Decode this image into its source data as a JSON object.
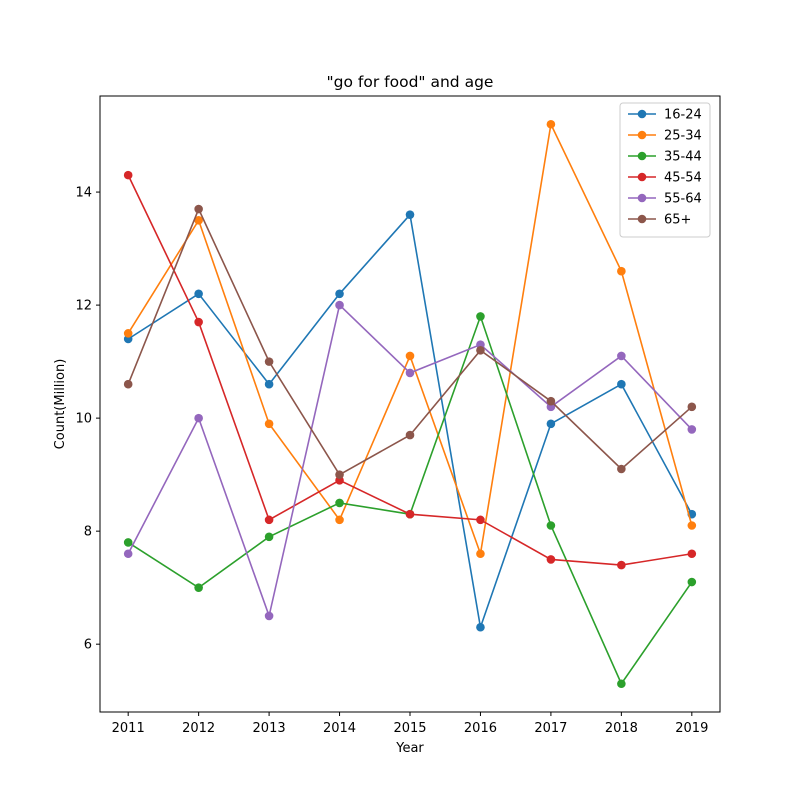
{
  "chart_data": {
    "type": "line",
    "title": "\"go for food\" and age",
    "xlabel": "Year",
    "ylabel": "Count(Million)",
    "x": [
      2011,
      2012,
      2013,
      2014,
      2015,
      2016,
      2017,
      2018,
      2019
    ],
    "xticks": [
      "2011",
      "2012",
      "2013",
      "2014",
      "2015",
      "2016",
      "2017",
      "2018",
      "2019"
    ],
    "yticks": [
      6,
      8,
      10,
      12,
      14
    ],
    "xlim": [
      2010.6,
      2019.4
    ],
    "ylim": [
      4.8,
      15.7
    ],
    "grid": false,
    "legend_position": "top-right",
    "series": [
      {
        "name": "16-24",
        "color": "#1f77b4",
        "values": [
          11.4,
          12.2,
          10.6,
          12.2,
          13.6,
          6.3,
          9.9,
          10.6,
          8.3
        ]
      },
      {
        "name": "25-34",
        "color": "#ff7f0e",
        "values": [
          11.5,
          13.5,
          9.9,
          8.2,
          11.1,
          7.6,
          15.2,
          12.6,
          8.1
        ]
      },
      {
        "name": "35-44",
        "color": "#2ca02c",
        "values": [
          7.8,
          7.0,
          7.9,
          8.5,
          8.3,
          11.8,
          8.1,
          5.3,
          7.1
        ]
      },
      {
        "name": "45-54",
        "color": "#d62728",
        "values": [
          14.3,
          11.7,
          8.2,
          8.9,
          8.3,
          8.2,
          7.5,
          7.4,
          7.6
        ]
      },
      {
        "name": "55-64",
        "color": "#9467bd",
        "values": [
          7.6,
          10.0,
          6.5,
          12.0,
          10.8,
          11.3,
          10.2,
          11.1,
          9.8
        ]
      },
      {
        "name": "65+",
        "color": "#8c564b",
        "values": [
          10.6,
          13.7,
          11.0,
          9.0,
          9.7,
          11.2,
          10.3,
          9.1,
          10.2
        ]
      }
    ]
  }
}
